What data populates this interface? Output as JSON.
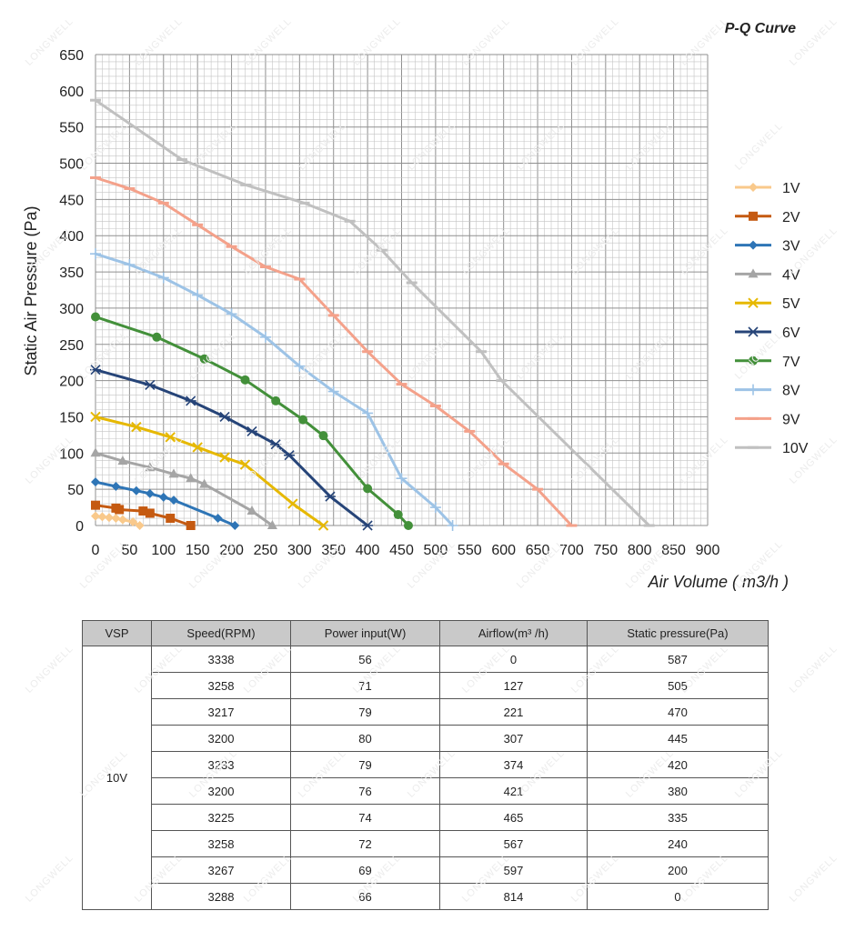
{
  "watermark": "LONGWELL",
  "chart_data": {
    "type": "line",
    "title": "P-Q Curve",
    "xlabel": "Air Volume ( m3/h )",
    "ylabel": "Static Air Pressure  (Pa)",
    "xlim": [
      0,
      900
    ],
    "ylim": [
      0,
      650
    ],
    "x_ticks": [
      0,
      50,
      100,
      150,
      200,
      250,
      300,
      350,
      400,
      450,
      500,
      550,
      600,
      650,
      700,
      750,
      800,
      850,
      900
    ],
    "y_ticks": [
      0,
      50,
      100,
      150,
      200,
      250,
      300,
      350,
      400,
      450,
      500,
      550,
      600,
      650
    ],
    "grid": true,
    "legend_position": "right",
    "series": [
      {
        "name": "1V",
        "color": "#f9c98b",
        "marker": "diamond",
        "x": [
          0,
          10,
          20,
          30,
          40,
          55,
          65
        ],
        "y": [
          13,
          12,
          11,
          10,
          8,
          5,
          0
        ]
      },
      {
        "name": "2V",
        "color": "#c55a11",
        "marker": "square",
        "x": [
          0,
          30,
          35,
          70,
          80,
          110,
          140
        ],
        "y": [
          28,
          24,
          22,
          20,
          17,
          10,
          0
        ]
      },
      {
        "name": "3V",
        "color": "#2e75b6",
        "marker": "diamond",
        "x": [
          0,
          30,
          60,
          80,
          100,
          115,
          180,
          205
        ],
        "y": [
          60,
          54,
          48,
          44,
          39,
          35,
          10,
          0
        ]
      },
      {
        "name": "4V",
        "color": "#a5a5a5",
        "marker": "triangle",
        "x": [
          0,
          40,
          80,
          115,
          140,
          160,
          230,
          260
        ],
        "y": [
          100,
          89,
          80,
          71,
          65,
          57,
          20,
          0
        ]
      },
      {
        "name": "5V",
        "color": "#e6b800",
        "marker": "x",
        "x": [
          0,
          60,
          110,
          150,
          190,
          220,
          290,
          335
        ],
        "y": [
          150,
          136,
          122,
          108,
          94,
          84,
          30,
          0
        ]
      },
      {
        "name": "6V",
        "color": "#264478",
        "marker": "star",
        "x": [
          0,
          80,
          140,
          190,
          230,
          265,
          285,
          345,
          400
        ],
        "y": [
          215,
          194,
          172,
          150,
          130,
          112,
          97,
          40,
          0
        ]
      },
      {
        "name": "7V",
        "color": "#43903a",
        "marker": "circle",
        "x": [
          0,
          90,
          160,
          220,
          265,
          305,
          335,
          400,
          445,
          460
        ],
        "y": [
          288,
          260,
          230,
          201,
          172,
          146,
          124,
          51,
          15,
          0
        ]
      },
      {
        "name": "8V",
        "color": "#9dc3e6",
        "marker": "plus",
        "x": [
          0,
          50,
          100,
          150,
          200,
          250,
          300,
          350,
          400,
          450,
          500,
          525
        ],
        "y": [
          375,
          360,
          342,
          318,
          292,
          260,
          220,
          185,
          155,
          65,
          25,
          0
        ]
      },
      {
        "name": "9V",
        "color": "#f4a18a",
        "marker": "dash",
        "x": [
          0,
          50,
          100,
          150,
          200,
          250,
          300,
          350,
          400,
          450,
          500,
          550,
          600,
          650,
          700
        ],
        "y": [
          480,
          465,
          445,
          415,
          385,
          357,
          340,
          290,
          240,
          195,
          165,
          130,
          85,
          50,
          0
        ]
      },
      {
        "name": "10V",
        "color": "#c0c0c0",
        "marker": "dash",
        "x": [
          0,
          127,
          221,
          307,
          374,
          421,
          465,
          567,
          597,
          814
        ],
        "y": [
          587,
          505,
          470,
          445,
          420,
          380,
          335,
          240,
          200,
          0
        ]
      }
    ]
  },
  "table": {
    "headers": [
      "VSP",
      "Speed(RPM)",
      "Power input(W)",
      "Airflow(m³ /h)",
      "Static pressure(Pa)"
    ],
    "vsp": "10V",
    "rows": [
      [
        "3338",
        "56",
        "0",
        "587"
      ],
      [
        "3258",
        "71",
        "127",
        "505"
      ],
      [
        "3217",
        "79",
        "221",
        "470"
      ],
      [
        "3200",
        "80",
        "307",
        "445"
      ],
      [
        "3233",
        "79",
        "374",
        "420"
      ],
      [
        "3200",
        "76",
        "421",
        "380"
      ],
      [
        "3225",
        "74",
        "465",
        "335"
      ],
      [
        "3258",
        "72",
        "567",
        "240"
      ],
      [
        "3267",
        "69",
        "597",
        "200"
      ],
      [
        "3288",
        "66",
        "814",
        "0"
      ]
    ]
  }
}
